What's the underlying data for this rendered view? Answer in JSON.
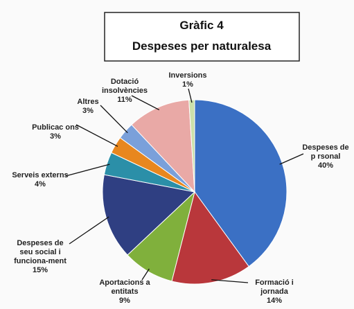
{
  "chart_data": {
    "type": "pie",
    "title": "Gràfic 4",
    "subtitle": "Despeses per naturalesa",
    "categories": [
      "Despeses de\np rsonal",
      "Formació i\njornada",
      "Aportacions a\nentitats",
      "Despeses de\nseu social i\nfunciona-ment",
      "Serveis externs",
      "Publicac ons",
      "Altres",
      "Dotació\ninsolvències",
      "Inversions"
    ],
    "values": [
      40,
      14,
      9,
      15,
      4,
      3,
      3,
      11,
      1
    ],
    "value_labels": [
      "40%",
      "14%",
      "9%",
      "15%",
      "4%",
      "3%",
      "3%",
      "11%",
      "1%"
    ],
    "colors": [
      "#3b70c4",
      "#b9373b",
      "#80b03c",
      "#2f3f82",
      "#2b8fa8",
      "#e8871f",
      "#7aa0da",
      "#e9a9a6",
      "#cbe0aa"
    ]
  }
}
